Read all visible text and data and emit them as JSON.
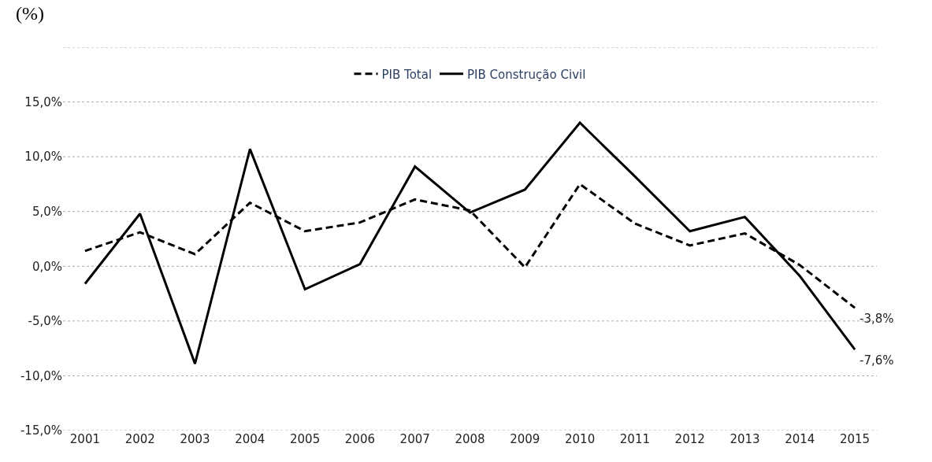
{
  "chart_data": {
    "type": "line",
    "ylabel": "(%)",
    "categories": [
      "2001",
      "2002",
      "2003",
      "2004",
      "2005",
      "2006",
      "2007",
      "2008",
      "2009",
      "2010",
      "2011",
      "2012",
      "2013",
      "2014",
      "2015"
    ],
    "series": [
      {
        "name": "PIB Total",
        "color": "#000000",
        "line_style": "dashed",
        "values": [
          1.4,
          3.1,
          1.1,
          5.8,
          3.2,
          4.0,
          6.1,
          5.1,
          -0.1,
          7.5,
          3.9,
          1.9,
          3.0,
          0.1,
          -3.8
        ]
      },
      {
        "name": "PIB Construção Civil",
        "color": "#000000",
        "line_style": "solid",
        "values": [
          -1.6,
          4.8,
          -8.9,
          10.7,
          -2.1,
          0.2,
          9.1,
          4.9,
          7.0,
          13.1,
          8.2,
          3.2,
          4.5,
          -0.9,
          -7.6
        ]
      }
    ],
    "ylim": [
      -15,
      20
    ],
    "yticks": [
      {
        "value": -15,
        "label": "-15,0%"
      },
      {
        "value": -10,
        "label": "-10,0%"
      },
      {
        "value": -5,
        "label": "-5,0%"
      },
      {
        "value": 0,
        "label": "0,0%"
      },
      {
        "value": 5,
        "label": "5,0%"
      },
      {
        "value": 10,
        "label": "10,0%"
      },
      {
        "value": 15,
        "label": "15,0%"
      },
      {
        "value": 20,
        "label": null
      }
    ],
    "grid": "y",
    "legend": "top",
    "marker": "none",
    "annotations": [
      {
        "text": "-3,8%",
        "x": "2015",
        "y": -3.8
      },
      {
        "text": "-7,6%",
        "x": "2015",
        "y": -7.6
      }
    ]
  }
}
